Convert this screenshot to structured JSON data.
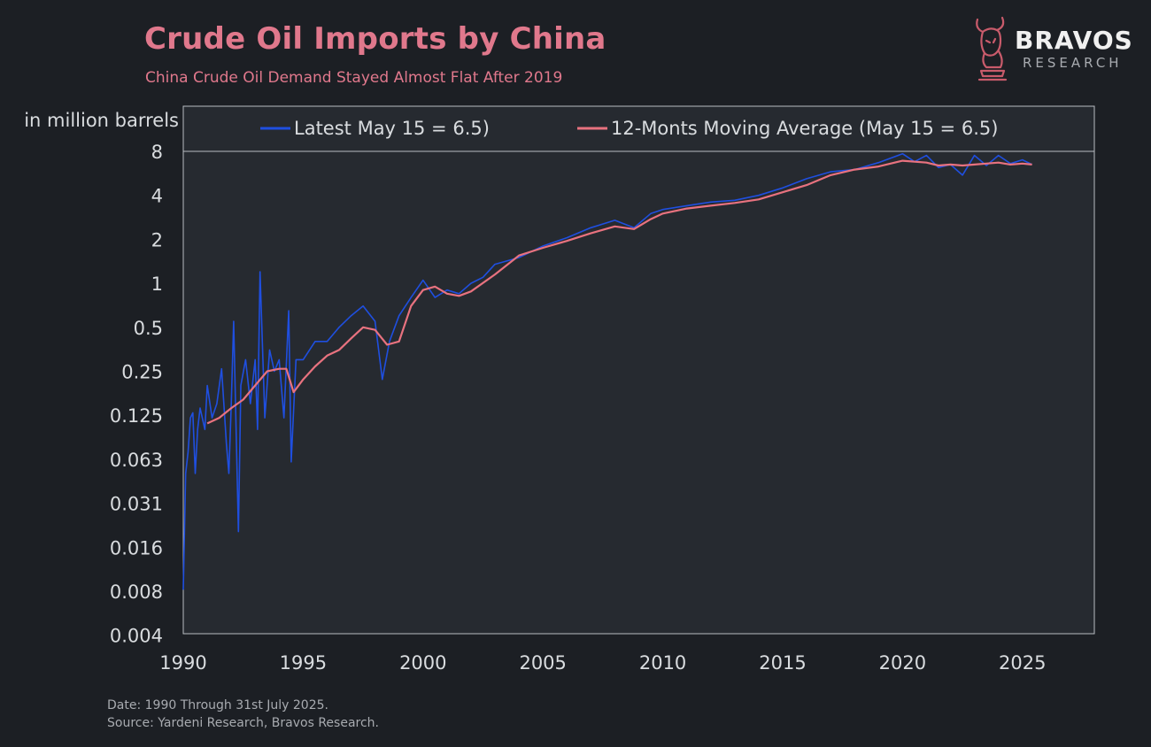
{
  "header": {
    "title": "Crude Oil Imports by China",
    "subtitle": "China Crude Oil Demand Stayed Almost Flat After 2019"
  },
  "brand": {
    "name": "BRAVOS",
    "sub": "RESEARCH"
  },
  "footer": {
    "date_note": "Date: 1990 Through 31st July 2025.",
    "source_note": "Source: Yardeni Research, Bravos Research."
  },
  "colors": {
    "background": "#1c1f24",
    "plot_bg": "#262a30",
    "latest": "#1f4fe0",
    "avg": "#e8727f",
    "accent": "#e0788c"
  },
  "chart_data": {
    "type": "line",
    "ylabel": "in million barrels",
    "y_scale": "log2",
    "ylim": [
      0.004,
      8
    ],
    "xlim": [
      1990,
      2028
    ],
    "y_ticks": [
      {
        "v": 8,
        "label": "8"
      },
      {
        "v": 4,
        "label": "4"
      },
      {
        "v": 2,
        "label": "2"
      },
      {
        "v": 1,
        "label": "1"
      },
      {
        "v": 0.5,
        "label": "0.5"
      },
      {
        "v": 0.25,
        "label": "0.25"
      },
      {
        "v": 0.125,
        "label": "0.125"
      },
      {
        "v": 0.0625,
        "label": "0.063"
      },
      {
        "v": 0.03125,
        "label": "0.031"
      },
      {
        "v": 0.015625,
        "label": "0.016"
      },
      {
        "v": 0.0078125,
        "label": "0.008"
      },
      {
        "v": 0.00390625,
        "label": "0.004"
      }
    ],
    "x_ticks": [
      "1990",
      "1995",
      "2000",
      "2005",
      "2010",
      "2015",
      "2020",
      "2025"
    ],
    "grid": false,
    "legend_position": "top",
    "series": [
      {
        "name": "Latest May 15 = 6.5)",
        "color": "#1f4fe0",
        "x": [
          1990.0,
          1990.1,
          1990.2,
          1990.3,
          1990.4,
          1990.5,
          1990.6,
          1990.7,
          1990.9,
          1991.0,
          1991.2,
          1991.4,
          1991.6,
          1991.8,
          1991.9,
          1992.0,
          1992.1,
          1992.3,
          1992.4,
          1992.6,
          1992.8,
          1993.0,
          1993.1,
          1993.2,
          1993.4,
          1993.6,
          1993.8,
          1994.0,
          1994.2,
          1994.4,
          1994.5,
          1994.7,
          1995.0,
          1995.5,
          1996.0,
          1996.5,
          1997.0,
          1997.5,
          1998.0,
          1998.3,
          1998.6,
          1999.0,
          1999.5,
          2000.0,
          2000.5,
          2001.0,
          2001.5,
          2002.0,
          2002.5,
          2003.0,
          2004.0,
          2005.0,
          2006.0,
          2007.0,
          2008.0,
          2008.8,
          2009.5,
          2010.0,
          2011.0,
          2012.0,
          2013.0,
          2014.0,
          2015.0,
          2016.0,
          2017.0,
          2018.0,
          2019.0,
          2020.0,
          2020.5,
          2021.0,
          2021.5,
          2022.0,
          2022.5,
          2023.0,
          2023.5,
          2024.0,
          2024.5,
          2025.0,
          2025.4
        ],
        "values": [
          0.008,
          0.05,
          0.07,
          0.12,
          0.13,
          0.05,
          0.1,
          0.14,
          0.1,
          0.2,
          0.12,
          0.15,
          0.26,
          0.08,
          0.05,
          0.15,
          0.55,
          0.02,
          0.2,
          0.3,
          0.15,
          0.3,
          0.1,
          1.2,
          0.12,
          0.35,
          0.25,
          0.3,
          0.12,
          0.65,
          0.06,
          0.3,
          0.3,
          0.4,
          0.4,
          0.5,
          0.6,
          0.7,
          0.55,
          0.22,
          0.4,
          0.6,
          0.8,
          1.05,
          0.8,
          0.9,
          0.85,
          1.0,
          1.1,
          1.35,
          1.5,
          1.8,
          2.05,
          2.4,
          2.7,
          2.4,
          3.0,
          3.2,
          3.4,
          3.6,
          3.7,
          4.0,
          4.5,
          5.2,
          5.8,
          6.0,
          6.7,
          7.7,
          6.8,
          7.5,
          6.2,
          6.5,
          5.5,
          7.5,
          6.4,
          7.5,
          6.6,
          7.0,
          6.5
        ]
      },
      {
        "name": "12-Monts Moving Average (May 15 = 6.5)",
        "color": "#e8727f",
        "x": [
          1991.0,
          1991.5,
          1992.0,
          1992.5,
          1993.0,
          1993.5,
          1994.0,
          1994.3,
          1994.6,
          1995.0,
          1995.5,
          1996.0,
          1996.5,
          1997.0,
          1997.5,
          1998.0,
          1998.5,
          1999.0,
          1999.5,
          2000.0,
          2000.5,
          2001.0,
          2001.5,
          2002.0,
          2003.0,
          2004.0,
          2005.0,
          2006.0,
          2007.0,
          2008.0,
          2008.8,
          2009.5,
          2010.0,
          2011.0,
          2012.0,
          2013.0,
          2014.0,
          2015.0,
          2016.0,
          2017.0,
          2018.0,
          2019.0,
          2020.0,
          2021.0,
          2021.5,
          2022.0,
          2022.5,
          2023.0,
          2023.5,
          2024.0,
          2024.5,
          2025.0,
          2025.4
        ],
        "values": [
          0.11,
          0.12,
          0.14,
          0.16,
          0.2,
          0.25,
          0.26,
          0.26,
          0.18,
          0.22,
          0.27,
          0.32,
          0.35,
          0.42,
          0.5,
          0.48,
          0.38,
          0.4,
          0.7,
          0.9,
          0.95,
          0.85,
          0.82,
          0.88,
          1.15,
          1.55,
          1.75,
          1.95,
          2.2,
          2.45,
          2.35,
          2.75,
          3.0,
          3.25,
          3.4,
          3.55,
          3.75,
          4.2,
          4.7,
          5.5,
          6.0,
          6.3,
          6.9,
          6.7,
          6.4,
          6.5,
          6.4,
          6.5,
          6.6,
          6.7,
          6.5,
          6.6,
          6.5
        ]
      }
    ]
  }
}
